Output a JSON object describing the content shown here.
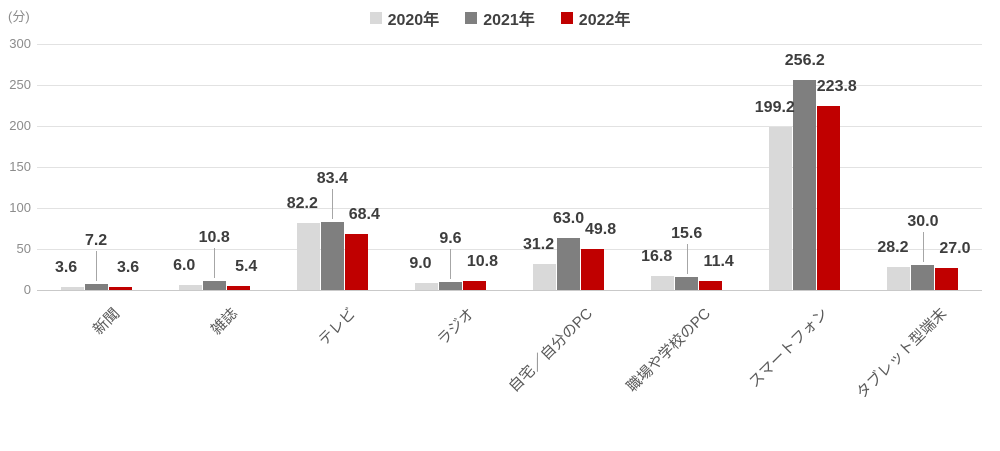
{
  "chart_data": {
    "type": "bar",
    "title": "",
    "unit_label": "(分)",
    "xlabel": "",
    "ylabel": "(分)",
    "categories": [
      "新聞",
      "雑誌",
      "テレビ",
      "ラジオ",
      "自宅／自分のPC",
      "職場や学校のPC",
      "スマートフォン",
      "タブレット型端末"
    ],
    "series": [
      {
        "name": "2020年",
        "color": "#d9d9d9",
        "values": [
          3.6,
          6.0,
          82.2,
          9.0,
          31.2,
          16.8,
          199.2,
          28.2
        ]
      },
      {
        "name": "2021年",
        "color": "#7f7f7f",
        "values": [
          7.2,
          10.8,
          83.4,
          9.6,
          63.0,
          15.6,
          256.2,
          30.0
        ],
        "leader_lines": [
          true,
          true,
          true,
          true,
          false,
          true,
          false,
          true
        ]
      },
      {
        "name": "2022年",
        "color": "#c00000",
        "values": [
          3.6,
          5.4,
          68.4,
          10.8,
          49.8,
          11.4,
          223.8,
          27.0
        ]
      }
    ],
    "ylim": [
      0,
      300
    ],
    "yticks": [
      0,
      50,
      100,
      150,
      200,
      250,
      300
    ],
    "grid": "horizontal",
    "legend_position": "top",
    "value_labels": "outside-end, one decimal"
  }
}
